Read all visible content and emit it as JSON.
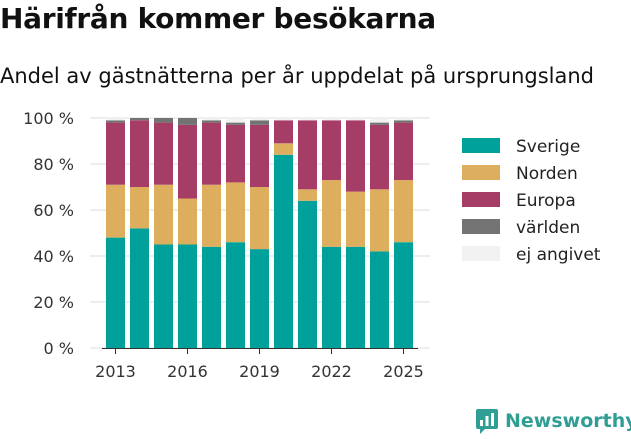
{
  "title": "Härifrån kommer besökarna",
  "subtitle": "Andel av gästnätterna per år uppdelat på ursprungsland",
  "brand": "Newsworthy",
  "colors": {
    "Sverige": "#00a19a",
    "Norden": "#ddae5e",
    "Europa": "#a63d67",
    "världen": "#737373",
    "ej angivet": "#f2f2f2"
  },
  "chart_data": {
    "type": "bar",
    "stacked": true,
    "x": [
      2013,
      2014,
      2015,
      2016,
      2017,
      2018,
      2019,
      2020,
      2021,
      2022,
      2023,
      2024,
      2025
    ],
    "x_ticks": [
      "2013",
      "2016",
      "2019",
      "2022",
      "2025"
    ],
    "y_ticks": [
      "0 %",
      "20 %",
      "40 %",
      "60 %",
      "80 %",
      "100 %"
    ],
    "ylim": [
      0,
      100
    ],
    "grid": true,
    "legend_position": "right",
    "series": [
      {
        "name": "Sverige",
        "values": [
          48,
          52,
          45,
          45,
          44,
          46,
          43,
          84,
          64,
          44,
          44,
          42,
          46
        ]
      },
      {
        "name": "Norden",
        "values": [
          23,
          18,
          26,
          20,
          27,
          26,
          27,
          5,
          5,
          29,
          24,
          27,
          27
        ]
      },
      {
        "name": "Europa",
        "values": [
          27,
          29,
          27,
          32,
          27,
          25,
          27,
          10,
          30,
          26,
          31,
          28,
          25
        ]
      },
      {
        "name": "världen",
        "values": [
          1,
          1,
          2,
          3,
          1,
          1,
          2,
          0,
          0,
          0,
          0,
          1,
          1
        ]
      },
      {
        "name": "ej angivet",
        "values": [
          1,
          0,
          0,
          0,
          1,
          2,
          1,
          1,
          1,
          1,
          1,
          2,
          1
        ]
      }
    ]
  }
}
